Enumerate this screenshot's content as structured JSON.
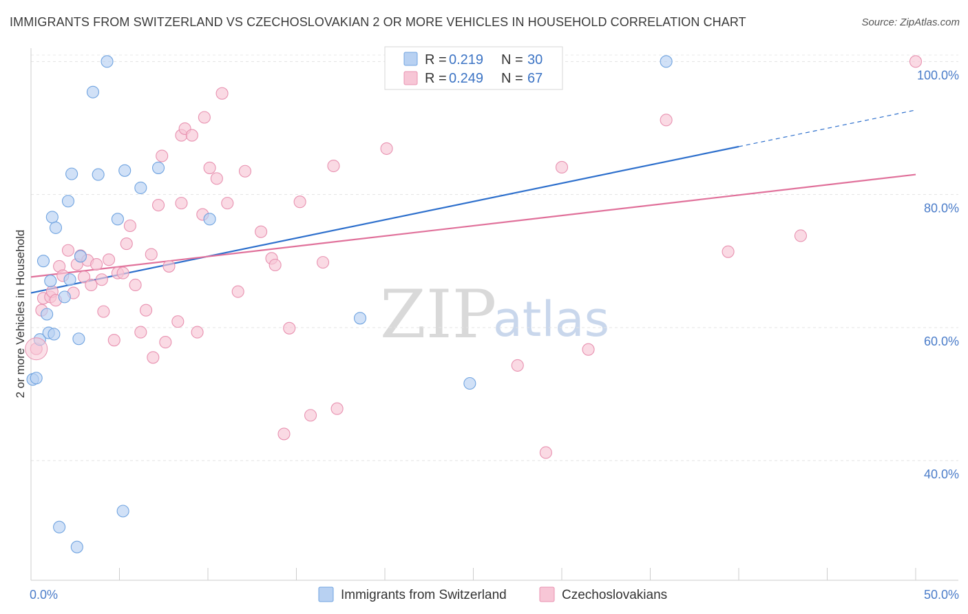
{
  "header": {
    "title": "IMMIGRANTS FROM SWITZERLAND VS CZECHOSLOVAKIAN 2 OR MORE VEHICLES IN HOUSEHOLD CORRELATION CHART",
    "source": "Source: ZipAtlas.com"
  },
  "watermark": {
    "zip": "ZIP",
    "atlas": "atlas"
  },
  "chart_data": {
    "type": "scatter",
    "title": "IMMIGRANTS FROM SWITZERLAND VS CZECHOSLOVAKIAN 2 OR MORE VEHICLES IN HOUSEHOLD CORRELATION CHART",
    "xlabel": "",
    "ylabel": "2 or more Vehicles in Household",
    "xlim": [
      0,
      50
    ],
    "ylim": [
      22,
      102
    ],
    "x_tick_labels": [
      "0.0%",
      "50.0%"
    ],
    "y_ticks": [
      {
        "value": 100,
        "label": "100.0%"
      },
      {
        "value": 80,
        "label": "80.0%"
      },
      {
        "value": 60,
        "label": "60.0%"
      },
      {
        "value": 40,
        "label": "40.0%"
      }
    ],
    "grid": true,
    "legend_position": "top-center",
    "series": [
      {
        "name": "Immigrants from Switzerland",
        "color": "#6fa3e0",
        "fill": "#b8d1f2",
        "line_color": "#2d6fcc",
        "R": "0.219",
        "N": "30",
        "trend": {
          "x": [
            0,
            40
          ],
          "y": [
            65.2,
            87.2
          ],
          "extend_x": 50,
          "extend_y": 92.7
        },
        "points": [
          [
            4.3,
            100.0
          ],
          [
            35.9,
            100.0
          ],
          [
            3.5,
            95.4
          ],
          [
            2.3,
            83.1
          ],
          [
            3.8,
            83.0
          ],
          [
            5.3,
            83.6
          ],
          [
            7.2,
            84.0
          ],
          [
            6.2,
            81.0
          ],
          [
            2.1,
            79.0
          ],
          [
            1.2,
            76.6
          ],
          [
            1.4,
            75.0
          ],
          [
            4.9,
            76.3
          ],
          [
            10.1,
            76.3
          ],
          [
            0.7,
            70.0
          ],
          [
            2.8,
            70.7
          ],
          [
            1.1,
            67.0
          ],
          [
            2.2,
            67.2
          ],
          [
            1.9,
            64.6
          ],
          [
            0.9,
            62.0
          ],
          [
            0.5,
            58.2
          ],
          [
            1.0,
            59.2
          ],
          [
            2.7,
            58.3
          ],
          [
            0.1,
            52.2
          ],
          [
            0.3,
            52.4
          ],
          [
            18.6,
            61.4
          ],
          [
            24.8,
            51.6
          ],
          [
            1.6,
            30.0
          ],
          [
            2.6,
            27.0
          ],
          [
            5.2,
            32.4
          ],
          [
            1.3,
            59.0
          ]
        ]
      },
      {
        "name": "Czechoslovakians",
        "color": "#e891b0",
        "fill": "#f7c6d6",
        "line_color": "#e0709a",
        "R": "0.249",
        "N": "67",
        "trend": {
          "x": [
            0,
            50
          ],
          "y": [
            67.6,
            83.0
          ]
        },
        "points": [
          [
            0.3,
            56.8
          ],
          [
            0.6,
            62.6
          ],
          [
            0.7,
            64.4
          ],
          [
            1.1,
            64.6
          ],
          [
            1.2,
            65.4
          ],
          [
            1.4,
            64.1
          ],
          [
            1.6,
            69.2
          ],
          [
            1.8,
            67.8
          ],
          [
            2.1,
            71.6
          ],
          [
            2.4,
            65.2
          ],
          [
            2.6,
            69.5
          ],
          [
            2.8,
            70.8
          ],
          [
            3.0,
            67.6
          ],
          [
            3.2,
            70.1
          ],
          [
            3.4,
            66.4
          ],
          [
            3.7,
            69.5
          ],
          [
            4.0,
            67.2
          ],
          [
            4.1,
            62.4
          ],
          [
            4.4,
            70.2
          ],
          [
            4.7,
            58.1
          ],
          [
            4.9,
            68.2
          ],
          [
            5.2,
            68.2
          ],
          [
            5.4,
            72.6
          ],
          [
            5.6,
            75.3
          ],
          [
            5.9,
            66.4
          ],
          [
            6.2,
            59.3
          ],
          [
            6.5,
            62.6
          ],
          [
            6.8,
            71.0
          ],
          [
            6.9,
            55.5
          ],
          [
            7.2,
            78.4
          ],
          [
            7.4,
            85.8
          ],
          [
            7.6,
            57.8
          ],
          [
            7.8,
            69.2
          ],
          [
            8.3,
            60.9
          ],
          [
            8.5,
            78.7
          ],
          [
            8.5,
            88.9
          ],
          [
            8.7,
            89.9
          ],
          [
            9.1,
            88.9
          ],
          [
            9.4,
            59.3
          ],
          [
            9.7,
            77.0
          ],
          [
            9.8,
            91.6
          ],
          [
            10.1,
            84.0
          ],
          [
            10.5,
            82.4
          ],
          [
            10.8,
            95.2
          ],
          [
            11.1,
            78.7
          ],
          [
            11.7,
            65.4
          ],
          [
            12.1,
            83.5
          ],
          [
            13.0,
            74.4
          ],
          [
            13.6,
            70.4
          ],
          [
            13.8,
            69.4
          ],
          [
            14.3,
            44.0
          ],
          [
            14.6,
            59.9
          ],
          [
            15.2,
            78.9
          ],
          [
            15.8,
            46.8
          ],
          [
            16.5,
            69.8
          ],
          [
            17.1,
            84.3
          ],
          [
            17.3,
            47.8
          ],
          [
            20.1,
            86.9
          ],
          [
            23.1,
            100.0
          ],
          [
            27.5,
            54.3
          ],
          [
            29.1,
            41.2
          ],
          [
            30.0,
            84.1
          ],
          [
            31.5,
            56.7
          ],
          [
            35.9,
            91.2
          ],
          [
            39.4,
            71.4
          ],
          [
            43.5,
            73.8
          ],
          [
            50.0,
            100.0
          ]
        ]
      }
    ]
  },
  "bottom_legend": {
    "items": [
      {
        "label": "Immigrants from Switzerland"
      },
      {
        "label": "Czechoslovakians"
      }
    ]
  }
}
